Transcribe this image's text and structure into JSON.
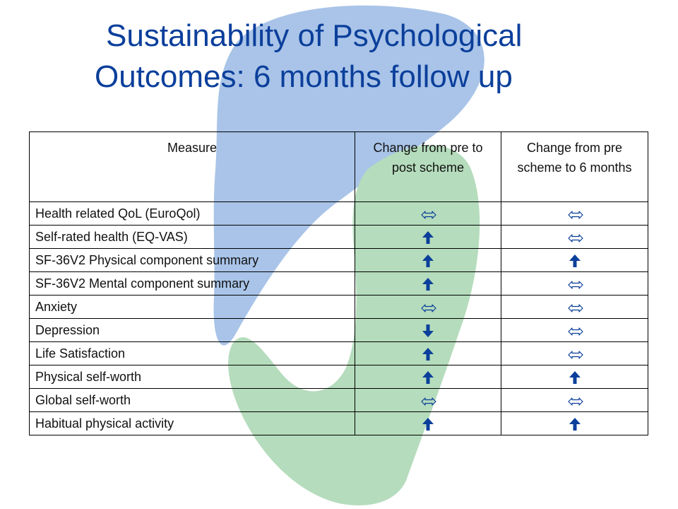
{
  "title": {
    "line1": "Sustainability of Psychological",
    "line2": "Outcomes: 6 months follow up"
  },
  "table": {
    "headers": [
      "Measure",
      "Change from pre to post scheme",
      "Change from pre scheme to 6 months"
    ],
    "rows": [
      {
        "measure": "Health related QoL (EuroQol)",
        "post": "no-change",
        "six": "no-change"
      },
      {
        "measure": "Self-rated health (EQ-VAS)",
        "post": "increase",
        "six": "no-change"
      },
      {
        "measure": "SF-36V2 Physical component summary",
        "post": "increase",
        "six": "increase"
      },
      {
        "measure": "SF-36V2 Mental component summary",
        "post": "increase",
        "six": "no-change"
      },
      {
        "measure": "Anxiety",
        "post": "no-change",
        "six": "no-change"
      },
      {
        "measure": "Depression",
        "post": "decrease",
        "six": "no-change"
      },
      {
        "measure": "Life Satisfaction",
        "post": "increase",
        "six": "no-change"
      },
      {
        "measure": "Physical self-worth",
        "post": "increase",
        "six": "increase"
      },
      {
        "measure": "Global self-worth",
        "post": "no-change",
        "six": "no-change"
      },
      {
        "measure": "Habitual physical activity",
        "post": "increase",
        "six": "increase"
      }
    ]
  },
  "icons": {
    "no-change": "double-headed-hollow-arrow-icon",
    "increase": "up-arrow-icon",
    "decrease": "down-arrow-icon"
  },
  "colors": {
    "title": "#0b3f9b",
    "arrow": "#0b3f9b",
    "logo_blue": "#a9c4e8",
    "logo_green": "#b5dcbc"
  }
}
